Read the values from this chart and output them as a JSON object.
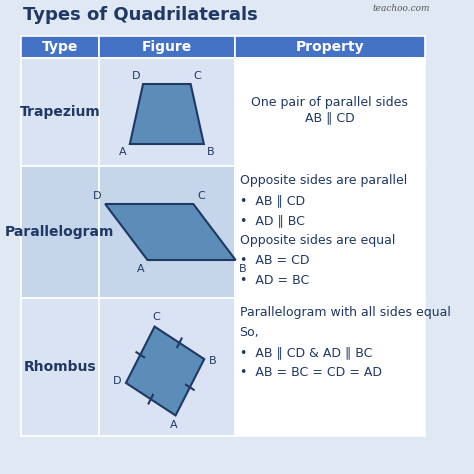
{
  "title": "Types of Quadrilaterals",
  "watermark": "teachoo.com",
  "header_bg": "#4472C4",
  "header_text_color": "#FFFFFF",
  "row_bg_light": "#DAE3F3",
  "row_bg_mid": "#C5D5EA",
  "shape_fill": "#5B8DB8",
  "shape_edge": "#1F3864",
  "col_headers": [
    "Type",
    "Figure",
    "Property"
  ],
  "rows": [
    {
      "type": "Trapezium",
      "property_lines": [
        {
          "text": "One pair of parallel sides",
          "bold": false,
          "indent": false
        },
        {
          "text": "AB ∥ CD",
          "bold": false,
          "indent": false
        }
      ]
    },
    {
      "type": "Parallelogram",
      "property_lines": [
        {
          "text": "Opposite sides are parallel",
          "bold": false,
          "indent": false
        },
        {
          "text": "•  AB ∥ CD",
          "bold": false,
          "indent": true
        },
        {
          "text": "•  AD ∥ BC",
          "bold": false,
          "indent": true
        },
        {
          "text": "Opposite sides are equal",
          "bold": false,
          "indent": false
        },
        {
          "text": "•  AB = CD",
          "bold": false,
          "indent": true
        },
        {
          "text": "•  AD = BC",
          "bold": false,
          "indent": true
        }
      ]
    },
    {
      "type": "Rhombus",
      "property_lines": [
        {
          "text": "Parallelogram with all sides equal",
          "bold": false,
          "indent": false
        },
        {
          "text": "So,",
          "bold": false,
          "indent": false
        },
        {
          "text": "•  AB ∥ CD & AD ∥ BC",
          "bold": false,
          "indent": true
        },
        {
          "text": "•  AB = BC = CD = AD",
          "bold": false,
          "indent": true
        }
      ]
    }
  ],
  "title_color": "#1F3864",
  "title_fontsize": 13,
  "type_fontsize": 10,
  "property_fontsize": 9,
  "header_fontsize": 10,
  "label_fontsize": 8
}
